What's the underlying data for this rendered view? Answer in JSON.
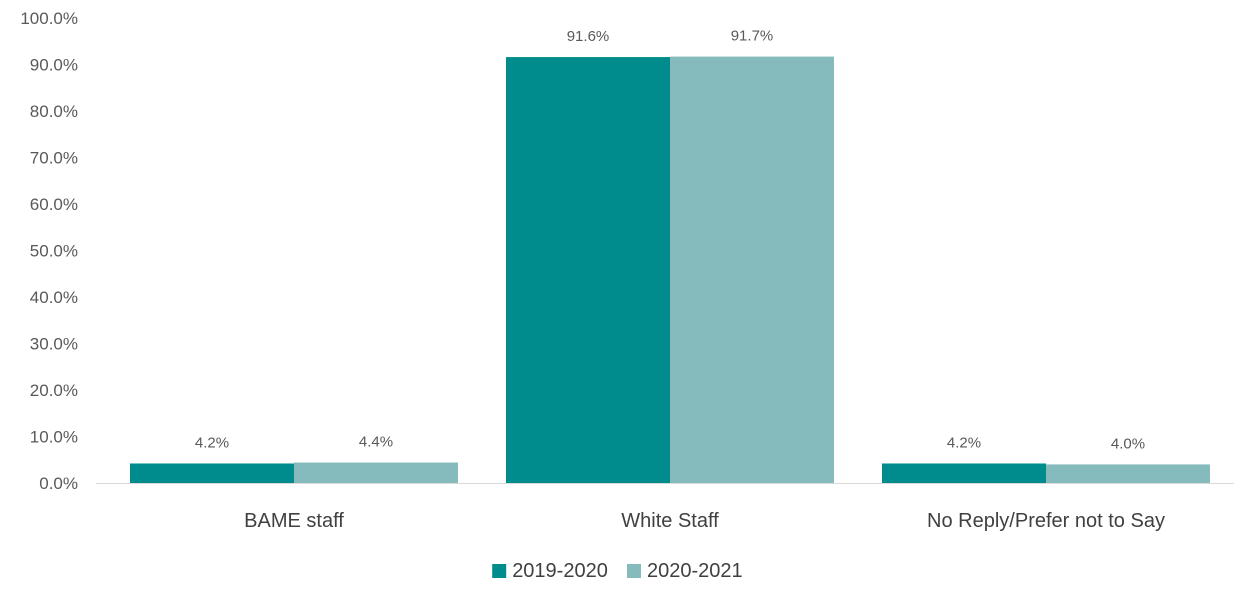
{
  "chart_data": {
    "type": "bar",
    "title": "",
    "xlabel": "",
    "ylabel": "",
    "categories": [
      "BAME staff",
      "White Staff",
      "No Reply/Prefer not to Say"
    ],
    "series": [
      {
        "name": "2019-2020",
        "values": [
          4.2,
          91.6,
          4.2
        ],
        "labels": [
          "4.2%",
          "91.6%",
          "4.2%"
        ],
        "color": "#008C8C"
      },
      {
        "name": "2020-2021",
        "values": [
          4.4,
          91.7,
          4.0
        ],
        "labels": [
          "4.4%",
          "91.7%",
          "4.0%"
        ],
        "color": "#85BBBC"
      }
    ],
    "ylim": [
      0,
      100
    ],
    "yticks": [
      0,
      10,
      20,
      30,
      40,
      50,
      60,
      70,
      80,
      90,
      100
    ],
    "ytick_labels": [
      "0.0%",
      "10.0%",
      "20.0%",
      "30.0%",
      "40.0%",
      "50.0%",
      "60.0%",
      "70.0%",
      "80.0%",
      "90.0%",
      "100.0%"
    ],
    "grid": false,
    "legend_position": "bottom"
  }
}
